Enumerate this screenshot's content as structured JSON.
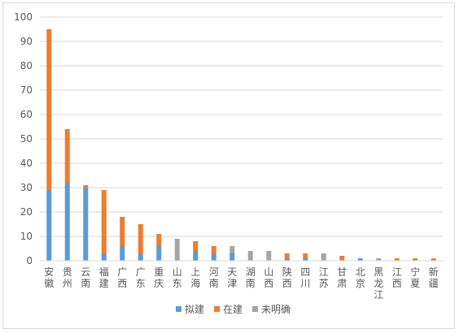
{
  "chart_data": {
    "type": "bar",
    "stacked": true,
    "categories": [
      "安徽",
      "贵州",
      "云南",
      "福建",
      "广西",
      "广东",
      "重庆",
      "山东",
      "上海",
      "河南",
      "天津",
      "湖南",
      "山西",
      "陕西",
      "四川",
      "江苏",
      "甘肃",
      "北京",
      "黑龙江",
      "江西",
      "宁夏",
      "新疆"
    ],
    "series": [
      {
        "name": "拟建",
        "color": "#5b9bd5",
        "values": [
          29,
          32,
          30,
          3,
          6,
          3,
          6,
          0,
          4,
          3,
          3,
          0,
          0,
          1,
          1,
          0,
          0,
          1,
          0,
          0,
          0,
          0
        ]
      },
      {
        "name": "在建",
        "color": "#ed7d31",
        "values": [
          66,
          22,
          1,
          26,
          12,
          12,
          5,
          0,
          4,
          3,
          0,
          0,
          0,
          2,
          2,
          0,
          2,
          0,
          0,
          1,
          1,
          1
        ]
      },
      {
        "name": "未明确",
        "color": "#a5a5a5",
        "values": [
          0,
          0,
          0,
          0,
          0,
          0,
          0,
          9,
          0,
          0,
          3,
          4,
          4,
          0,
          0,
          3,
          0,
          0,
          1,
          0,
          0,
          0
        ]
      }
    ],
    "ylim": [
      0,
      100
    ],
    "yticks": [
      "0",
      "10",
      "20",
      "30",
      "40",
      "50",
      "60",
      "70",
      "80",
      "90",
      "100"
    ],
    "grid": true,
    "legend_position": "bottom"
  }
}
